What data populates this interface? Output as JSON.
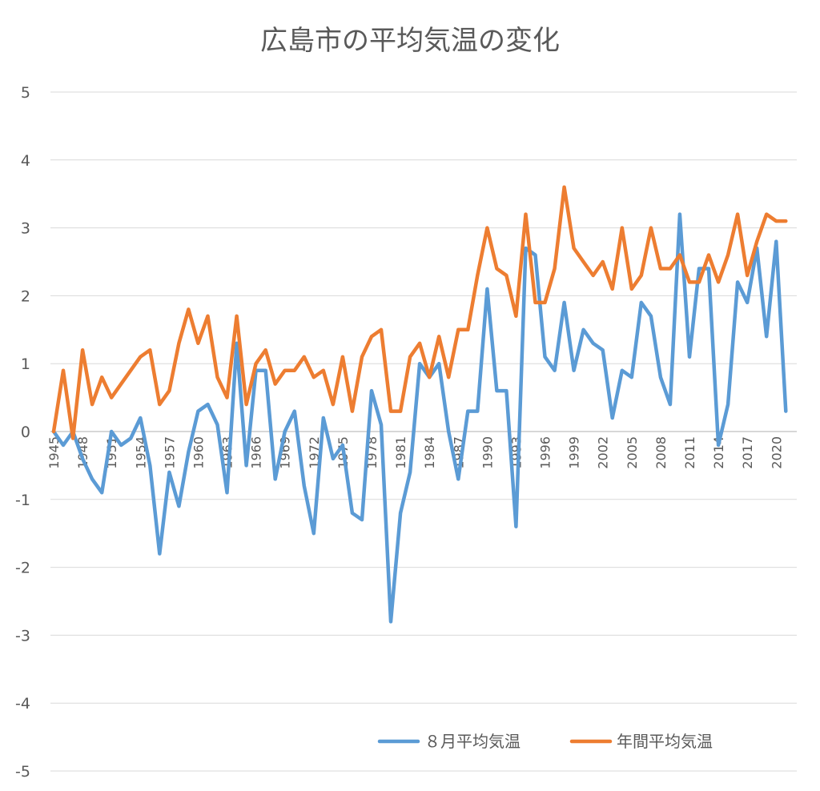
{
  "chart_data": {
    "type": "line",
    "title": "広島市の平均気温の変化",
    "xlabel": "",
    "ylabel": "",
    "ylim": [
      -5,
      5
    ],
    "yticks": [
      "5",
      "4",
      "3",
      "2",
      "1",
      "0",
      "-1",
      "-2",
      "-3",
      "-4",
      "-5"
    ],
    "grid": true,
    "legend_position": "bottom-right",
    "x_tick_labels": [
      "1945",
      "1948",
      "1951",
      "1954",
      "1957",
      "1960",
      "1963",
      "1966",
      "1969",
      "1972",
      "1975",
      "1978",
      "1981",
      "1984",
      "1987",
      "1990",
      "1993",
      "1996",
      "1999",
      "2002",
      "2005",
      "2008",
      "2011",
      "2014",
      "2017",
      "2020"
    ],
    "x": [
      1945,
      1946,
      1947,
      1948,
      1949,
      1950,
      1951,
      1952,
      1953,
      1954,
      1955,
      1956,
      1957,
      1958,
      1959,
      1960,
      1961,
      1962,
      1963,
      1964,
      1965,
      1966,
      1967,
      1968,
      1969,
      1970,
      1971,
      1972,
      1973,
      1974,
      1975,
      1976,
      1977,
      1978,
      1979,
      1980,
      1981,
      1982,
      1983,
      1984,
      1985,
      1986,
      1987,
      1988,
      1989,
      1990,
      1991,
      1992,
      1993,
      1994,
      1995,
      1996,
      1997,
      1998,
      1999,
      2000,
      2001,
      2002,
      2003,
      2004,
      2005,
      2006,
      2007,
      2008,
      2009,
      2010,
      2011,
      2012,
      2013,
      2014,
      2015,
      2016,
      2017,
      2018,
      2019,
      2020,
      2021
    ],
    "series": [
      {
        "name": "８月平均気温",
        "color": "#5b9bd5",
        "values": [
          0.0,
          -0.2,
          0.0,
          -0.4,
          -0.7,
          -0.9,
          0.0,
          -0.2,
          -0.1,
          0.2,
          -0.5,
          -1.8,
          -0.6,
          -1.1,
          -0.3,
          0.3,
          0.4,
          0.1,
          -0.9,
          1.3,
          -0.5,
          0.9,
          0.9,
          -0.7,
          0.0,
          0.3,
          -0.8,
          -1.5,
          0.2,
          -0.4,
          -0.2,
          -1.2,
          -1.3,
          0.6,
          0.1,
          -2.8,
          -1.2,
          -0.6,
          1.0,
          0.8,
          1.0,
          0.0,
          -0.7,
          0.3,
          0.3,
          2.1,
          0.6,
          0.6,
          -1.4,
          2.7,
          2.6,
          1.1,
          0.9,
          1.9,
          0.9,
          1.5,
          1.3,
          1.2,
          0.2,
          0.9,
          0.8,
          1.9,
          1.7,
          0.8,
          0.4,
          3.2,
          1.1,
          2.4,
          2.4,
          -0.2,
          0.4,
          2.2,
          1.9,
          2.7,
          1.4,
          2.8,
          0.3
        ]
      },
      {
        "name": "年間平均気温",
        "color": "#ed7d31",
        "values": [
          0.0,
          0.9,
          -0.1,
          1.2,
          0.4,
          0.8,
          0.5,
          0.7,
          0.9,
          1.1,
          1.2,
          0.4,
          0.6,
          1.3,
          1.8,
          1.3,
          1.7,
          0.8,
          0.5,
          1.7,
          0.4,
          1.0,
          1.2,
          0.7,
          0.9,
          0.9,
          1.1,
          0.8,
          0.9,
          0.4,
          1.1,
          0.3,
          1.1,
          1.4,
          1.5,
          0.3,
          0.3,
          1.1,
          1.3,
          0.8,
          1.4,
          0.8,
          1.5,
          1.5,
          2.3,
          3.0,
          2.4,
          2.3,
          1.7,
          3.2,
          1.9,
          1.9,
          2.4,
          3.6,
          2.7,
          2.5,
          2.3,
          2.5,
          2.1,
          3.0,
          2.1,
          2.3,
          3.0,
          2.4,
          2.4,
          2.6,
          2.2,
          2.2,
          2.6,
          2.2,
          2.6,
          3.2,
          2.3,
          2.8,
          3.2,
          3.1,
          3.1
        ]
      }
    ]
  }
}
